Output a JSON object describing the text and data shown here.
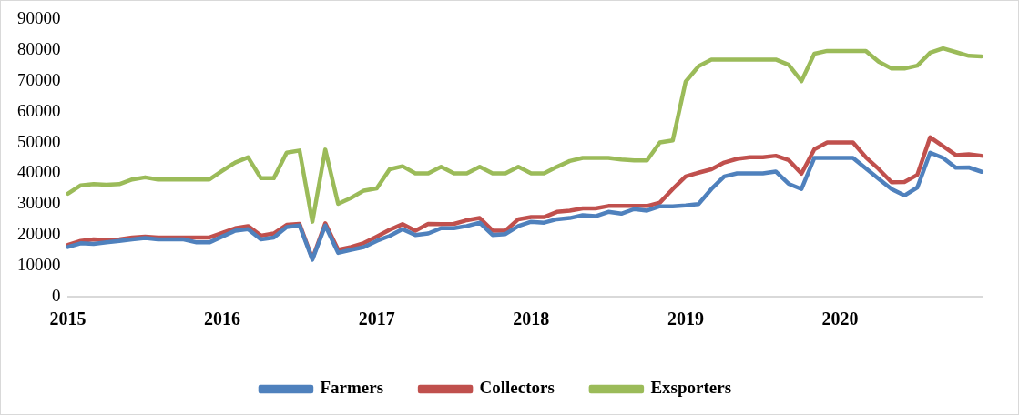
{
  "chart_data": {
    "type": "line",
    "categories": [
      "2015",
      null,
      null,
      null,
      null,
      null,
      null,
      null,
      null,
      null,
      null,
      null,
      "2016",
      null,
      null,
      null,
      null,
      null,
      null,
      null,
      null,
      null,
      null,
      null,
      "2017",
      null,
      null,
      null,
      null,
      null,
      null,
      null,
      null,
      null,
      null,
      null,
      "2018",
      null,
      null,
      null,
      null,
      null,
      null,
      null,
      null,
      null,
      null,
      null,
      "2019",
      null,
      null,
      null,
      null,
      null,
      null,
      null,
      null,
      null,
      null,
      null,
      "2020",
      null,
      null,
      null,
      null,
      null,
      null,
      null,
      null,
      null,
      null,
      null
    ],
    "series": [
      {
        "name": "Farmers",
        "color": "#4f81bd",
        "values": [
          16100,
          17300,
          17100,
          17600,
          18100,
          18600,
          19000,
          18600,
          18600,
          18600,
          17600,
          17600,
          19500,
          21400,
          21900,
          18600,
          19200,
          22600,
          23100,
          12000,
          23100,
          14200,
          15200,
          16100,
          18100,
          19700,
          21900,
          20000,
          20500,
          22200,
          22200,
          22900,
          24000,
          20000,
          20300,
          22900,
          24300,
          24000,
          25100,
          25500,
          26400,
          26100,
          27500,
          26900,
          28400,
          27900,
          29300,
          29300,
          29600,
          30000,
          34900,
          39000,
          40000,
          40000,
          40000,
          40600,
          36600,
          34900,
          45000,
          45000,
          45000,
          45000,
          41600,
          38200,
          34900,
          32800,
          35400,
          46700,
          45000,
          41800,
          41900,
          40500
        ]
      },
      {
        "name": "Collectors",
        "color": "#c0504d",
        "values": [
          16800,
          18100,
          18600,
          18400,
          18600,
          19200,
          19500,
          19200,
          19200,
          19200,
          19200,
          19200,
          20700,
          22200,
          22900,
          19800,
          20500,
          23300,
          23600,
          12300,
          23800,
          15200,
          16100,
          17400,
          19500,
          21700,
          23500,
          21400,
          23600,
          23500,
          23600,
          24800,
          25500,
          21400,
          21400,
          25100,
          25800,
          25800,
          27500,
          27900,
          28600,
          28600,
          29400,
          29400,
          29400,
          29400,
          30500,
          34900,
          39000,
          40200,
          41300,
          43500,
          44700,
          45200,
          45200,
          45700,
          44300,
          39900,
          47800,
          50000,
          50000,
          50000,
          45200,
          41400,
          37100,
          37200,
          39500,
          51700,
          48800,
          45900,
          46200,
          45700
        ]
      },
      {
        "name": "Exsporters",
        "color": "#9bbb59",
        "values": [
          33400,
          36100,
          36500,
          36300,
          36500,
          38000,
          38700,
          38000,
          38000,
          38000,
          38000,
          38000,
          40800,
          43500,
          45200,
          38400,
          38400,
          46700,
          47400,
          24300,
          47700,
          30100,
          32000,
          34400,
          35100,
          41300,
          42300,
          40000,
          40000,
          42100,
          40000,
          40000,
          42100,
          40000,
          40000,
          42100,
          40000,
          40000,
          42100,
          44000,
          45000,
          45000,
          45000,
          44500,
          44200,
          44200,
          50000,
          50700,
          69700,
          74700,
          76900,
          76900,
          76900,
          76900,
          76900,
          76900,
          75200,
          69900,
          78800,
          79700,
          79700,
          79700,
          79700,
          76200,
          74000,
          74000,
          74900,
          79100,
          80500,
          79300,
          78100,
          77900
        ]
      }
    ],
    "ylim": [
      0,
      90000
    ],
    "yticks": [
      0,
      10000,
      20000,
      30000,
      40000,
      50000,
      60000,
      70000,
      80000,
      90000
    ],
    "grid": false,
    "legend": "bottom",
    "marker": "none",
    "line_style": "solid"
  }
}
